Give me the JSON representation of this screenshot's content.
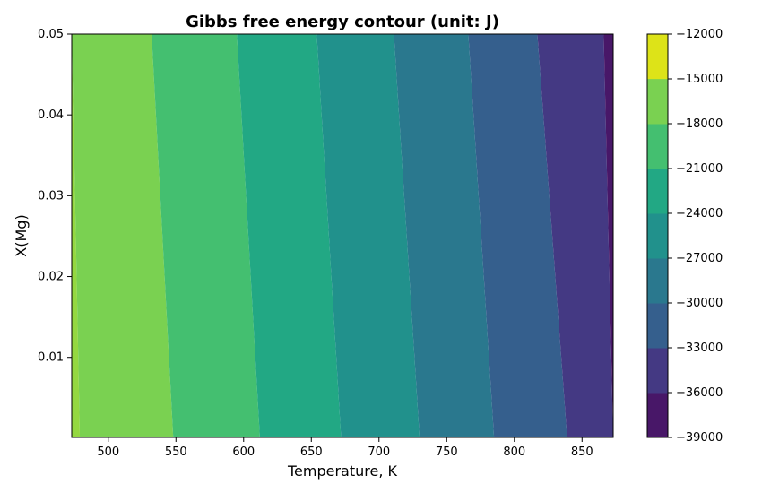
{
  "chart_data": {
    "type": "contour",
    "title": "Gibbs free energy contour (unit: J)",
    "xlabel": "Temperature, K",
    "ylabel": "X(Mg)",
    "xlim": [
      473,
      873
    ],
    "ylim": [
      0.0001,
      0.05
    ],
    "x_ticks": [
      500,
      550,
      600,
      650,
      700,
      750,
      800,
      850
    ],
    "y_ticks": [
      0.01,
      0.02,
      0.03,
      0.04,
      0.05
    ],
    "colorbar": {
      "levels": [
        -39000,
        -36000,
        -33000,
        -30000,
        -27000,
        -24000,
        -21000,
        -18000,
        -15000,
        -12000
      ],
      "colors": [
        "#481768",
        "#443983",
        "#355f8d",
        "#2a788e",
        "#21918c",
        "#22a884",
        "#44bf70",
        "#7ad151",
        "#94d840",
        "#dde318"
      ],
      "tick_labels": [
        "-39000",
        "-36000",
        "-33000",
        "-30000",
        "-27000",
        "-24000",
        "-21000",
        "-18000",
        "-15000",
        "-12000"
      ]
    },
    "contour_boundaries": [
      {
        "level": -15000,
        "top_x": 473,
        "bottom_x": 479
      },
      {
        "level": -18000,
        "top_x": 532,
        "bottom_x": 548
      },
      {
        "level": -21000,
        "top_x": 595,
        "bottom_x": 612
      },
      {
        "level": -24000,
        "top_x": 654,
        "bottom_x": 672
      },
      {
        "level": -27000,
        "top_x": 711,
        "bottom_x": 730
      },
      {
        "level": -30000,
        "top_x": 766,
        "bottom_x": 785
      },
      {
        "level": -33000,
        "top_x": 817,
        "bottom_x": 839
      },
      {
        "level": -36000,
        "top_x": 866,
        "bottom_x": 873
      }
    ]
  }
}
